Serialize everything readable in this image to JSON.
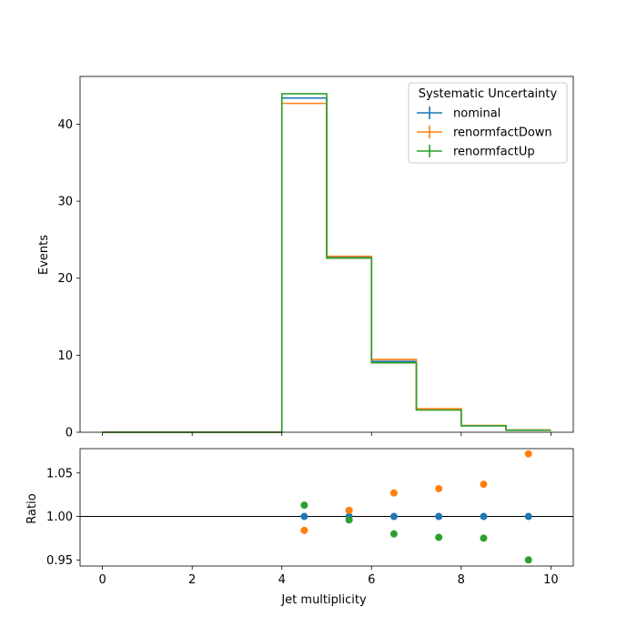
{
  "chart_data": [
    {
      "type": "line",
      "ylabel": "Events",
      "xlim": [
        -0.5,
        10.5
      ],
      "ylim": [
        0,
        46.2
      ],
      "yticks": [
        "0",
        "10",
        "20",
        "30",
        "40"
      ],
      "bin_edges": [
        0,
        1,
        2,
        3,
        4,
        5,
        6,
        7,
        8,
        9,
        10
      ],
      "legend": {
        "title": "Systematic Uncertainty",
        "placement": "upper right",
        "style": "errorbar"
      },
      "series": [
        {
          "name": "nominal",
          "color": "#1f77b4",
          "values": [
            0,
            0,
            0,
            0,
            43.4,
            22.7,
            9.2,
            2.95,
            0.85,
            0.27
          ]
        },
        {
          "name": "renormfactDown",
          "color": "#ff7f0e",
          "values": [
            0,
            0,
            0,
            0,
            42.7,
            22.85,
            9.45,
            3.05,
            0.88,
            0.29
          ]
        },
        {
          "name": "renormfactUp",
          "color": "#2ca02c",
          "values": [
            0,
            0,
            0,
            0,
            43.95,
            22.6,
            9.02,
            2.88,
            0.83,
            0.26
          ]
        }
      ]
    },
    {
      "type": "scatter",
      "xlabel": "Jet multiplicity",
      "ylabel": "Ratio",
      "xlim": [
        -0.5,
        10.5
      ],
      "ylim": [
        0.943,
        1.078
      ],
      "xticks": [
        "0",
        "2",
        "4",
        "6",
        "8",
        "10"
      ],
      "yticks": [
        "0.95",
        "1.00",
        "1.05"
      ],
      "reference_line": 1.0,
      "x": [
        4.5,
        5.5,
        6.5,
        7.5,
        8.5,
        9.5
      ],
      "series": [
        {
          "name": "nominal",
          "color": "#1f77b4",
          "values": [
            1.0,
            1.0,
            1.0,
            1.0,
            1.0,
            1.0
          ]
        },
        {
          "name": "renormfactDown",
          "color": "#ff7f0e",
          "values": [
            0.984,
            1.007,
            1.027,
            1.032,
            1.037,
            1.072
          ]
        },
        {
          "name": "renormfactUp",
          "color": "#2ca02c",
          "values": [
            1.013,
            0.996,
            0.98,
            0.976,
            0.975,
            0.95
          ]
        }
      ]
    }
  ]
}
